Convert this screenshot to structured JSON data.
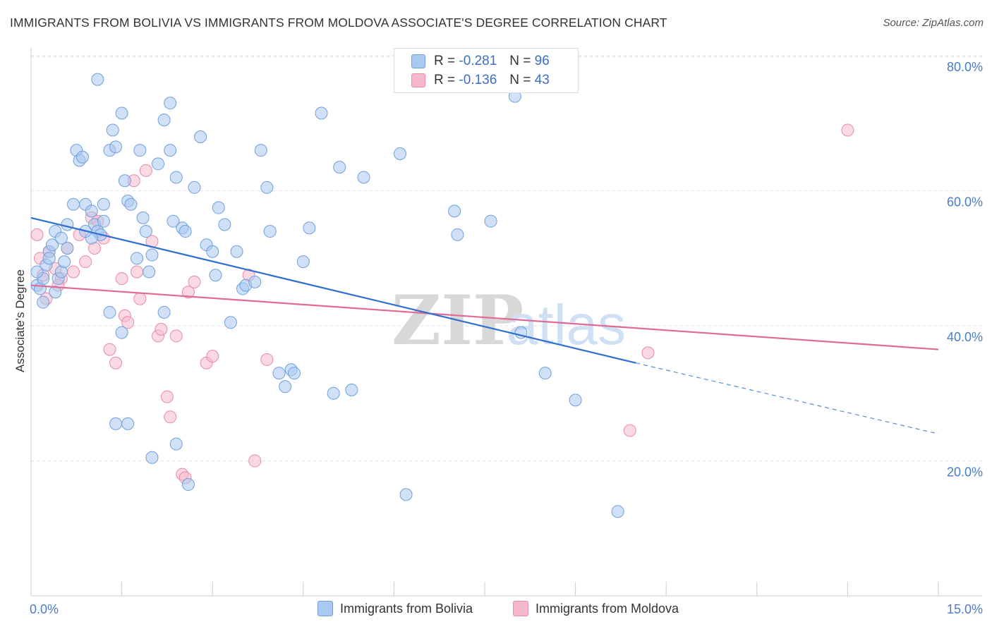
{
  "title": "IMMIGRANTS FROM BOLIVIA VS IMMIGRANTS FROM MOLDOVA ASSOCIATE'S DEGREE CORRELATION CHART",
  "source": "Source: ZipAtlas.com",
  "watermark": {
    "zip": "ZIP",
    "atlas": "atlas"
  },
  "legend_top": [
    {
      "r_label": "R =",
      "r_value": "-0.281",
      "n_label": "N =",
      "n_value": "96"
    },
    {
      "r_label": "R =",
      "r_value": "-0.136",
      "n_label": "N =",
      "n_value": "43"
    }
  ],
  "legend_bottom": [
    {
      "label": "Immigrants from Bolivia"
    },
    {
      "label": "Immigrants from Moldova"
    }
  ],
  "colors": {
    "bolivia_fill": "#a9c9f0",
    "bolivia_stroke": "#6f9fdc",
    "bolivia_line": "#2f6fd0",
    "moldova_fill": "#f6b9cc",
    "moldova_stroke": "#e88aa8",
    "moldova_line": "#e06a96",
    "tick_label": "#4a7cc7",
    "grid": "#e2e2e2"
  },
  "chart_data": {
    "type": "scatter",
    "title": "IMMIGRANTS FROM BOLIVIA VS IMMIGRANTS FROM MOLDOVA ASSOCIATE'S DEGREE CORRELATION CHART",
    "xlabel": "",
    "ylabel": "Associate's Degree",
    "xlim": [
      0,
      15
    ],
    "ylim": [
      0,
      82
    ],
    "x_tick_labels": [
      {
        "value": 0,
        "label": "0.0%"
      },
      {
        "value": 15,
        "label": "15.0%"
      }
    ],
    "x_minor_ticks": [
      0,
      1.5,
      3,
      4.5,
      6,
      7.5,
      9,
      10.5,
      12,
      13.5,
      15
    ],
    "y_ticks": [
      {
        "value": 20,
        "label": "20.0%"
      },
      {
        "value": 40,
        "label": "40.0%"
      },
      {
        "value": 60,
        "label": "60.0%"
      },
      {
        "value": 80,
        "label": "80.0%"
      }
    ],
    "grid": true,
    "legend_position": "top-center",
    "series": [
      {
        "name": "Immigrants from Bolivia",
        "points": [
          [
            0.1,
            46
          ],
          [
            0.15,
            45.5
          ],
          [
            0.2,
            47
          ],
          [
            0.25,
            49
          ],
          [
            0.3,
            51
          ],
          [
            0.35,
            52
          ],
          [
            0.4,
            54
          ],
          [
            0.45,
            47
          ],
          [
            0.5,
            48
          ],
          [
            0.55,
            49.5
          ],
          [
            0.6,
            51.5
          ],
          [
            0.7,
            58
          ],
          [
            0.75,
            66
          ],
          [
            0.8,
            64.5
          ],
          [
            0.85,
            65
          ],
          [
            0.9,
            58
          ],
          [
            1.0,
            57
          ],
          [
            1.05,
            55
          ],
          [
            1.1,
            54
          ],
          [
            1.15,
            53.5
          ],
          [
            1.0,
            53
          ],
          [
            1.2,
            58
          ],
          [
            1.3,
            66
          ],
          [
            1.35,
            69
          ],
          [
            1.4,
            66.5
          ],
          [
            1.5,
            71.5
          ],
          [
            1.55,
            61.5
          ],
          [
            1.6,
            58.5
          ],
          [
            1.65,
            58
          ],
          [
            1.75,
            50
          ],
          [
            1.8,
            66
          ],
          [
            1.85,
            56
          ],
          [
            1.9,
            54
          ],
          [
            1.95,
            48
          ],
          [
            2.0,
            50.5
          ],
          [
            2.1,
            64
          ],
          [
            2.2,
            70.5
          ],
          [
            2.3,
            66
          ],
          [
            2.35,
            55.5
          ],
          [
            2.4,
            62
          ],
          [
            2.5,
            54.5
          ],
          [
            2.55,
            54
          ],
          [
            2.7,
            60.5
          ],
          [
            2.8,
            68
          ],
          [
            2.9,
            52
          ],
          [
            3.0,
            51
          ],
          [
            3.05,
            47.5
          ],
          [
            3.1,
            57.5
          ],
          [
            3.2,
            55
          ],
          [
            3.3,
            40.5
          ],
          [
            3.4,
            51
          ],
          [
            3.5,
            45.5
          ],
          [
            3.55,
            46
          ],
          [
            3.7,
            46.5
          ],
          [
            3.8,
            66
          ],
          [
            3.9,
            60.5
          ],
          [
            3.95,
            54
          ],
          [
            4.1,
            33
          ],
          [
            4.2,
            31
          ],
          [
            4.3,
            33.5
          ],
          [
            4.35,
            33
          ],
          [
            4.5,
            49.5
          ],
          [
            4.6,
            54.5
          ],
          [
            4.8,
            71.5
          ],
          [
            5.0,
            30
          ],
          [
            5.1,
            63.5
          ],
          [
            5.3,
            30.5
          ],
          [
            5.5,
            62
          ],
          [
            6.1,
            65.5
          ],
          [
            6.2,
            15
          ],
          [
            7.0,
            57
          ],
          [
            7.05,
            53.5
          ],
          [
            7.6,
            55.5
          ],
          [
            8.0,
            74
          ],
          [
            8.1,
            39
          ],
          [
            8.5,
            33
          ],
          [
            9.0,
            29
          ],
          [
            9.7,
            12.5
          ],
          [
            1.1,
            76.5
          ],
          [
            1.3,
            42
          ],
          [
            2.3,
            73
          ],
          [
            2.2,
            42
          ],
          [
            2.4,
            22.5
          ],
          [
            2.0,
            20.5
          ],
          [
            1.5,
            39
          ],
          [
            1.4,
            25.5
          ],
          [
            1.6,
            25.5
          ],
          [
            2.6,
            16.5
          ],
          [
            0.2,
            43.5
          ],
          [
            0.4,
            45
          ],
          [
            0.3,
            50
          ],
          [
            0.6,
            55
          ],
          [
            1.2,
            55.5
          ],
          [
            0.9,
            54
          ],
          [
            0.5,
            53
          ],
          [
            0.1,
            48
          ]
        ]
      },
      {
        "name": "Immigrants from Moldova",
        "points": [
          [
            0.1,
            53.5
          ],
          [
            0.15,
            50
          ],
          [
            0.2,
            47.5
          ],
          [
            0.3,
            51
          ],
          [
            0.4,
            48.5
          ],
          [
            0.5,
            47
          ],
          [
            0.6,
            51.5
          ],
          [
            0.7,
            48
          ],
          [
            0.8,
            53.5
          ],
          [
            0.9,
            49.5
          ],
          [
            1.0,
            56
          ],
          [
            1.05,
            51.5
          ],
          [
            1.1,
            55.5
          ],
          [
            1.2,
            53
          ],
          [
            1.3,
            36.5
          ],
          [
            1.4,
            34.5
          ],
          [
            1.5,
            47
          ],
          [
            1.55,
            41.5
          ],
          [
            1.6,
            40.5
          ],
          [
            1.7,
            61.5
          ],
          [
            1.75,
            48
          ],
          [
            1.8,
            44
          ],
          [
            1.9,
            63
          ],
          [
            2.0,
            52.5
          ],
          [
            2.1,
            38.5
          ],
          [
            2.15,
            39.5
          ],
          [
            2.25,
            29.5
          ],
          [
            2.3,
            26.5
          ],
          [
            2.4,
            38.5
          ],
          [
            2.5,
            18
          ],
          [
            2.55,
            17.5
          ],
          [
            2.6,
            45
          ],
          [
            2.7,
            46.5
          ],
          [
            2.9,
            34.5
          ],
          [
            3.0,
            35.5
          ],
          [
            3.6,
            47.5
          ],
          [
            3.7,
            20
          ],
          [
            3.9,
            35
          ],
          [
            9.9,
            24.5
          ],
          [
            10.2,
            36
          ],
          [
            13.5,
            69
          ],
          [
            0.25,
            44
          ],
          [
            0.45,
            46
          ]
        ]
      }
    ],
    "trend_lines": [
      {
        "series": "Immigrants from Bolivia",
        "x": [
          0,
          10.0
        ],
        "y": [
          56,
          34.5
        ],
        "dashed_extension": {
          "x": [
            10.0,
            15
          ],
          "y": [
            34.5,
            24
          ]
        }
      },
      {
        "series": "Immigrants from Moldova",
        "x": [
          0,
          15
        ],
        "y": [
          46,
          36.5
        ]
      }
    ]
  }
}
